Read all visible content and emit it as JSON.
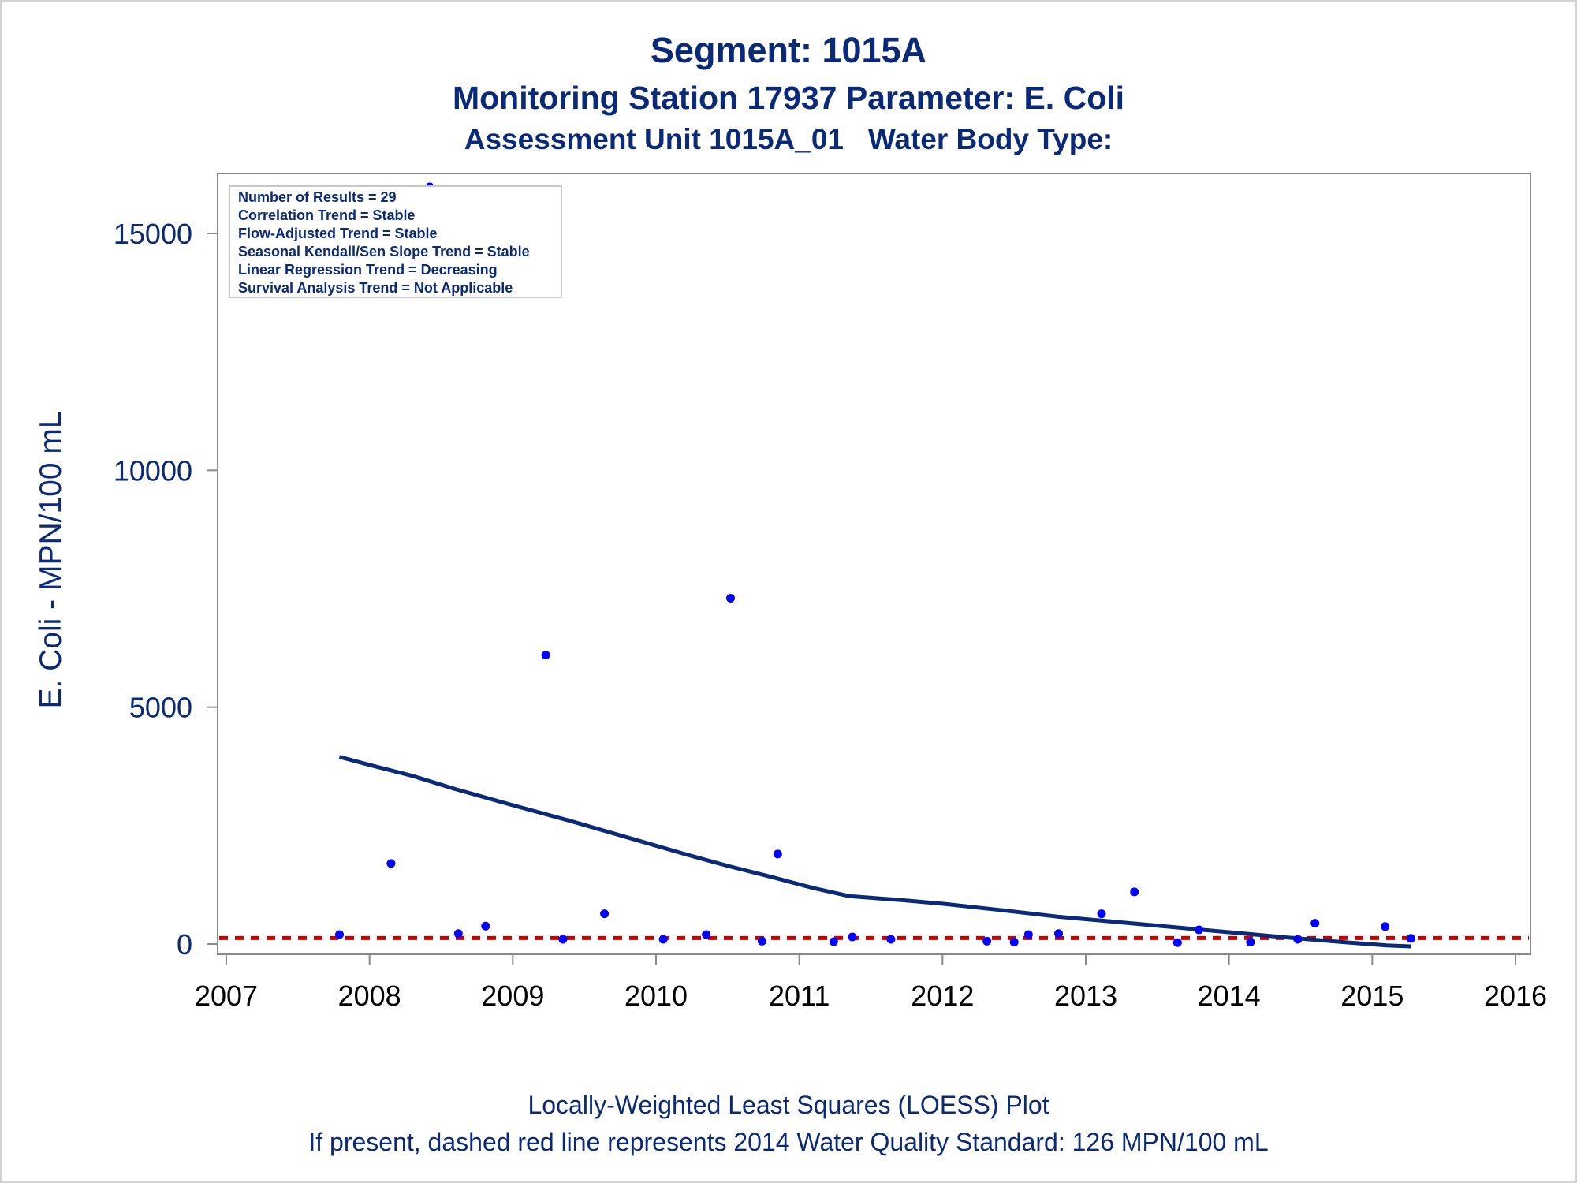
{
  "chart_data": {
    "type": "scatter",
    "title": "Segment: 1015A",
    "subtitle": "Monitoring Station 17937 Parameter: E. Coli",
    "subtitle2": "Assessment Unit 1015A_01   Water Body Type:",
    "ylabel": "E. Coli - MPN/100 mL",
    "xlabel": "",
    "xlim": [
      2007,
      2016
    ],
    "ylim": [
      -350,
      16000
    ],
    "x_ticks": [
      "2007",
      "2008",
      "2009",
      "2010",
      "2011",
      "2012",
      "2013",
      "2014",
      "2015",
      "2016"
    ],
    "y_ticks": [
      "0",
      "5000",
      "10000",
      "15000"
    ],
    "grid": false,
    "legend_placement": "top-left",
    "inset_lines": [
      "Number of Results = 29",
      "Correlation Trend = Stable",
      "Flow-Adjusted Trend = Stable",
      "Seasonal Kendall/Sen Slope Trend = Stable",
      "Linear Regression Trend = Decreasing",
      "Survival Analysis Trend = Not Applicable"
    ],
    "points": [
      {
        "x": 2007.79,
        "y": 200
      },
      {
        "x": 2008.15,
        "y": 1700
      },
      {
        "x": 2008.42,
        "y": 16000
      },
      {
        "x": 2008.62,
        "y": 220
      },
      {
        "x": 2008.81,
        "y": 380
      },
      {
        "x": 2009.23,
        "y": 6100
      },
      {
        "x": 2009.35,
        "y": 100
      },
      {
        "x": 2009.64,
        "y": 640
      },
      {
        "x": 2010.05,
        "y": 100
      },
      {
        "x": 2010.35,
        "y": 200
      },
      {
        "x": 2010.52,
        "y": 7300
      },
      {
        "x": 2010.74,
        "y": 60
      },
      {
        "x": 2010.85,
        "y": 1900
      },
      {
        "x": 2011.24,
        "y": 50
      },
      {
        "x": 2011.37,
        "y": 150
      },
      {
        "x": 2011.64,
        "y": 100
      },
      {
        "x": 2012.31,
        "y": 60
      },
      {
        "x": 2012.5,
        "y": 40
      },
      {
        "x": 2012.6,
        "y": 200
      },
      {
        "x": 2012.81,
        "y": 220
      },
      {
        "x": 2013.11,
        "y": 640
      },
      {
        "x": 2013.34,
        "y": 1100
      },
      {
        "x": 2013.64,
        "y": 30
      },
      {
        "x": 2013.79,
        "y": 300
      },
      {
        "x": 2014.15,
        "y": 40
      },
      {
        "x": 2014.48,
        "y": 100
      },
      {
        "x": 2014.6,
        "y": 440
      },
      {
        "x": 2015.09,
        "y": 370
      },
      {
        "x": 2015.27,
        "y": 120
      }
    ],
    "loess": [
      {
        "x": 2007.79,
        "y": 3950
      },
      {
        "x": 2008.0,
        "y": 3780
      },
      {
        "x": 2008.3,
        "y": 3550
      },
      {
        "x": 2008.6,
        "y": 3270
      },
      {
        "x": 2009.0,
        "y": 2930
      },
      {
        "x": 2009.4,
        "y": 2600
      },
      {
        "x": 2009.8,
        "y": 2250
      },
      {
        "x": 2010.2,
        "y": 1900
      },
      {
        "x": 2010.5,
        "y": 1650
      },
      {
        "x": 2010.8,
        "y": 1420
      },
      {
        "x": 2011.1,
        "y": 1180
      },
      {
        "x": 2011.35,
        "y": 1010
      },
      {
        "x": 2011.7,
        "y": 930
      },
      {
        "x": 2012.0,
        "y": 850
      },
      {
        "x": 2012.4,
        "y": 720
      },
      {
        "x": 2012.8,
        "y": 580
      },
      {
        "x": 2013.2,
        "y": 470
      },
      {
        "x": 2013.6,
        "y": 360
      },
      {
        "x": 2014.0,
        "y": 250
      },
      {
        "x": 2014.4,
        "y": 140
      },
      {
        "x": 2014.8,
        "y": 40
      },
      {
        "x": 2015.1,
        "y": -30
      },
      {
        "x": 2015.27,
        "y": -50
      }
    ],
    "reference_line": {
      "y": 126,
      "style": "dashed",
      "color": "#cc0000"
    },
    "point_color": "#0000ff",
    "line_color": "#0a2a78",
    "text_color": "#0a2a78"
  },
  "footnote1": "Locally-Weighted Least Squares (LOESS) Plot",
  "footnote2": "If present, dashed red line represents 2014 Water Quality Standard: 126 MPN/100 mL"
}
